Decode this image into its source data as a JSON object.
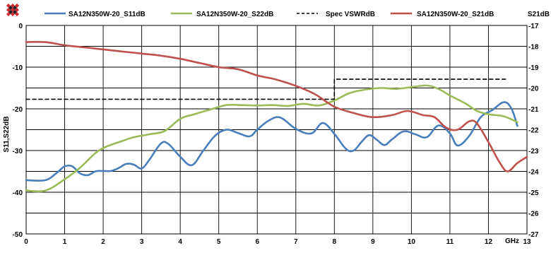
{
  "chart_data": {
    "type": "line",
    "ylabel": "S11,S22dB",
    "y2label": "S21dB",
    "xunit": "GHz",
    "xlim": [
      0,
      13
    ],
    "ylim": [
      -50,
      0
    ],
    "y2lim": [
      -27,
      -17
    ],
    "xticks": [
      0,
      1,
      2,
      3,
      4,
      5,
      6,
      7,
      8,
      9,
      10,
      11,
      12,
      13
    ],
    "yticks": [
      0,
      -10,
      -20,
      -30,
      -40,
      -50
    ],
    "y2ticks": [
      -17,
      -18,
      -19,
      -20,
      -21,
      -22,
      -23,
      -24,
      -25,
      -26,
      -27
    ],
    "grid": true,
    "legend_position": "top",
    "series": [
      {
        "name": "SA12N350W-20_S11dB",
        "axis": "left",
        "color": "#4a7ebb",
        "points": [
          [
            0.0,
            -37.1
          ],
          [
            0.5,
            -37.1
          ],
          [
            0.8,
            -35.3
          ],
          [
            1.0,
            -33.8
          ],
          [
            1.2,
            -33.8
          ],
          [
            1.4,
            -35.5
          ],
          [
            1.6,
            -35.9
          ],
          [
            1.8,
            -35.0
          ],
          [
            2.0,
            -34.9
          ],
          [
            2.2,
            -34.9
          ],
          [
            2.4,
            -34.2
          ],
          [
            2.6,
            -33.2
          ],
          [
            2.8,
            -33.4
          ],
          [
            3.0,
            -34.3
          ],
          [
            3.2,
            -32.2
          ],
          [
            3.5,
            -28.3
          ],
          [
            3.7,
            -28.5
          ],
          [
            4.0,
            -31.5
          ],
          [
            4.3,
            -33.5
          ],
          [
            4.6,
            -30.0
          ],
          [
            4.9,
            -26.5
          ],
          [
            5.2,
            -25.0
          ],
          [
            5.5,
            -25.8
          ],
          [
            5.8,
            -26.6
          ],
          [
            6.0,
            -25.0
          ],
          [
            6.3,
            -22.8
          ],
          [
            6.6,
            -22.1
          ],
          [
            7.0,
            -24.8
          ],
          [
            7.4,
            -25.9
          ],
          [
            7.7,
            -23.4
          ],
          [
            8.0,
            -26.0
          ],
          [
            8.3,
            -29.6
          ],
          [
            8.5,
            -30.0
          ],
          [
            8.7,
            -28.0
          ],
          [
            8.9,
            -26.3
          ],
          [
            9.1,
            -27.4
          ],
          [
            9.3,
            -28.7
          ],
          [
            9.5,
            -27.3
          ],
          [
            9.8,
            -25.4
          ],
          [
            10.1,
            -26.1
          ],
          [
            10.4,
            -26.8
          ],
          [
            10.7,
            -24.0
          ],
          [
            11.0,
            -25.9
          ],
          [
            11.2,
            -28.8
          ],
          [
            11.5,
            -26.5
          ],
          [
            11.8,
            -22.0
          ],
          [
            12.1,
            -20.3
          ],
          [
            12.4,
            -18.4
          ],
          [
            12.6,
            -20.0
          ],
          [
            12.75,
            -24.1
          ]
        ]
      },
      {
        "name": "SA12N350W-20_S22dB",
        "axis": "left",
        "color": "#9bbb59",
        "points": [
          [
            0.0,
            -39.6
          ],
          [
            0.5,
            -39.6
          ],
          [
            1.0,
            -36.9
          ],
          [
            1.4,
            -34.1
          ],
          [
            1.8,
            -30.6
          ],
          [
            2.1,
            -29.0
          ],
          [
            2.5,
            -27.7
          ],
          [
            2.8,
            -26.8
          ],
          [
            3.2,
            -26.1
          ],
          [
            3.6,
            -25.3
          ],
          [
            4.0,
            -22.4
          ],
          [
            4.4,
            -21.2
          ],
          [
            4.8,
            -20.1
          ],
          [
            5.2,
            -19.1
          ],
          [
            5.6,
            -19.1
          ],
          [
            6.0,
            -19.2
          ],
          [
            6.4,
            -19.1
          ],
          [
            6.8,
            -19.3
          ],
          [
            7.2,
            -18.8
          ],
          [
            7.6,
            -19.2
          ],
          [
            8.0,
            -18.0
          ],
          [
            8.4,
            -16.2
          ],
          [
            8.8,
            -15.4
          ],
          [
            9.2,
            -15.0
          ],
          [
            9.6,
            -15.2
          ],
          [
            10.0,
            -14.8
          ],
          [
            10.4,
            -14.4
          ],
          [
            10.7,
            -15.2
          ],
          [
            11.0,
            -16.8
          ],
          [
            11.4,
            -18.7
          ],
          [
            11.7,
            -20.5
          ],
          [
            12.0,
            -21.3
          ],
          [
            12.4,
            -21.8
          ],
          [
            12.75,
            -23.2
          ]
        ]
      },
      {
        "name": "Spec VSWRdB",
        "axis": "left",
        "color": "#000000",
        "dash": true,
        "points": [
          [
            0.0,
            -17.7
          ],
          [
            8.0,
            -17.7
          ],
          [
            8.0,
            -12.9
          ],
          [
            12.5,
            -12.9
          ]
        ]
      },
      {
        "name": "SA12N350W-20_S21dB",
        "axis": "right",
        "color": "#c0504d",
        "points": [
          [
            0.0,
            -17.8
          ],
          [
            0.5,
            -17.8
          ],
          [
            1.0,
            -17.95
          ],
          [
            1.5,
            -18.05
          ],
          [
            2.0,
            -18.15
          ],
          [
            2.5,
            -18.25
          ],
          [
            3.0,
            -18.35
          ],
          [
            3.5,
            -18.45
          ],
          [
            4.0,
            -18.6
          ],
          [
            4.5,
            -18.8
          ],
          [
            5.0,
            -19.0
          ],
          [
            5.5,
            -19.1
          ],
          [
            6.0,
            -19.4
          ],
          [
            6.5,
            -19.6
          ],
          [
            7.0,
            -19.9
          ],
          [
            7.5,
            -20.3
          ],
          [
            8.0,
            -20.9
          ],
          [
            8.5,
            -21.2
          ],
          [
            9.0,
            -21.4
          ],
          [
            9.5,
            -21.3
          ],
          [
            9.9,
            -21.1
          ],
          [
            10.3,
            -21.3
          ],
          [
            10.6,
            -21.4
          ],
          [
            10.9,
            -21.9
          ],
          [
            11.2,
            -22.0
          ],
          [
            11.5,
            -21.6
          ],
          [
            11.7,
            -21.7
          ],
          [
            12.0,
            -22.6
          ],
          [
            12.3,
            -23.6
          ],
          [
            12.5,
            -24.0
          ],
          [
            12.75,
            -23.6
          ],
          [
            13.0,
            -23.3
          ]
        ]
      }
    ]
  }
}
